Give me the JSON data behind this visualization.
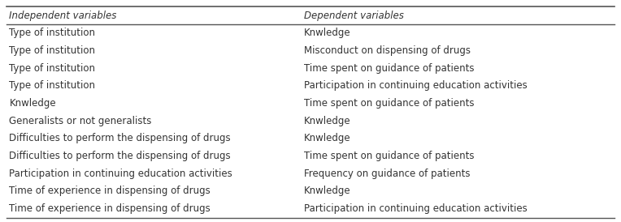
{
  "col1_header": "Independent variables",
  "col2_header": "Dependent variables",
  "rows": [
    [
      "Type of institution",
      "Knwledge"
    ],
    [
      "Type of institution",
      "Misconduct on dispensing of drugs"
    ],
    [
      "Type of institution",
      "Time spent on guidance of patients"
    ],
    [
      "Type of institution",
      "Participation in continuing education activities"
    ],
    [
      "Knwledge",
      "Time spent on guidance of patients"
    ],
    [
      "Generalists or not generalists",
      "Knwledge"
    ],
    [
      "Difficulties to perform the dispensing of drugs",
      "Knwledge"
    ],
    [
      "Difficulties to perform the dispensing of drugs",
      "Time spent on guidance of patients"
    ],
    [
      "Participation in continuing education activities",
      "Frequency on guidance of patients"
    ],
    [
      "Time of experience in dispensing of drugs",
      "Knwledge"
    ],
    [
      "Time of experience in dispensing of drugs",
      "Participation in continuing education activities"
    ]
  ],
  "col_split": 0.48,
  "background_color": "#ffffff",
  "header_line_color": "#555555",
  "text_color": "#333333",
  "font_size": 8.5,
  "header_font_size": 8.5,
  "fig_width": 7.64,
  "fig_height": 2.74
}
